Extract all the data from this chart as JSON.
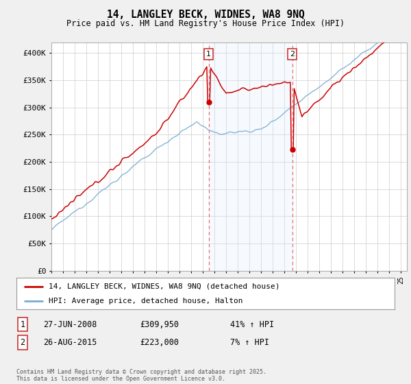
{
  "title": "14, LANGLEY BECK, WIDNES, WA8 9NQ",
  "subtitle": "Price paid vs. HM Land Registry's House Price Index (HPI)",
  "ylim": [
    0,
    420000
  ],
  "yticks": [
    0,
    50000,
    100000,
    150000,
    200000,
    250000,
    300000,
    350000,
    400000
  ],
  "ytick_labels": [
    "£0",
    "£50K",
    "£100K",
    "£150K",
    "£200K",
    "£250K",
    "£300K",
    "£350K",
    "£400K"
  ],
  "sale1_date": "27-JUN-2008",
  "sale1_price": 309950,
  "sale1_hpi": "41% ↑ HPI",
  "sale2_date": "26-AUG-2015",
  "sale2_price": 223000,
  "sale2_hpi": "7% ↑ HPI",
  "red_line_color": "#cc0000",
  "blue_line_color": "#7aadcf",
  "vline_color": "#e87070",
  "shade_color": "#ddeeff",
  "legend1": "14, LANGLEY BECK, WIDNES, WA8 9NQ (detached house)",
  "legend2": "HPI: Average price, detached house, Halton",
  "footnote": "Contains HM Land Registry data © Crown copyright and database right 2025.\nThis data is licensed under the Open Government Licence v3.0.",
  "background_color": "#f0f0f0",
  "plot_bg_color": "#ffffff",
  "grid_color": "#cccccc"
}
